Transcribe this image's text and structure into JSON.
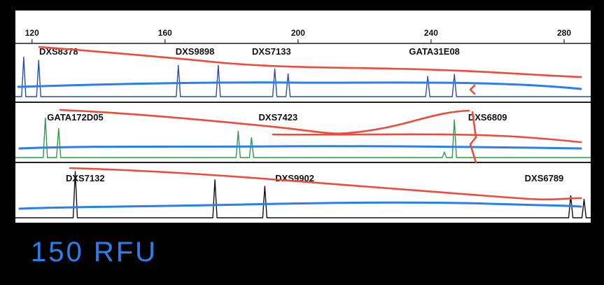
{
  "chart_data": {
    "type": "line",
    "x_ticks": [
      120,
      160,
      200,
      240,
      280
    ],
    "xlim": [
      115,
      288
    ],
    "panels": [
      {
        "color": "#2b4fa8",
        "markers": [
          {
            "label": "DXS8378",
            "x": 128
          },
          {
            "label": "DXS9898",
            "x": 169
          },
          {
            "label": "DXS7133",
            "x": 192
          },
          {
            "label": "GATA31E08",
            "x": 241
          }
        ],
        "peaks": [
          {
            "x": 117.5,
            "h": 0.78
          },
          {
            "x": 122,
            "h": 0.72
          },
          {
            "x": 164,
            "h": 0.62
          },
          {
            "x": 176,
            "h": 0.62
          },
          {
            "x": 193,
            "h": 0.55
          },
          {
            "x": 197,
            "h": 0.45
          },
          {
            "x": 239,
            "h": 0.4
          },
          {
            "x": 247,
            "h": 0.44
          }
        ]
      },
      {
        "color": "#2e9a4a",
        "markers": [
          {
            "label": "GATA172D05",
            "x": 133
          },
          {
            "label": "DXS7423",
            "x": 194
          },
          {
            "label": "DXS6809",
            "x": 257
          }
        ],
        "peaks": [
          {
            "x": 124,
            "h": 0.75
          },
          {
            "x": 128,
            "h": 0.55
          },
          {
            "x": 182,
            "h": 0.5
          },
          {
            "x": 186,
            "h": 0.38
          },
          {
            "x": 244,
            "h": 0.1
          },
          {
            "x": 247,
            "h": 0.72
          }
        ]
      },
      {
        "color": "#111111",
        "markers": [
          {
            "label": "DXS7132",
            "x": 136
          },
          {
            "label": "DXS9902",
            "x": 199
          },
          {
            "label": "DXS6789",
            "x": 274
          }
        ],
        "peaks": [
          {
            "x": 133,
            "h": 0.88
          },
          {
            "x": 175,
            "h": 0.72
          },
          {
            "x": 190,
            "h": 0.6
          },
          {
            "x": 282,
            "h": 0.42
          },
          {
            "x": 286,
            "h": 0.35
          }
        ]
      }
    ],
    "annotations": {
      "threshold_color": "#2a7fe8",
      "peak_height_trend_color": "#ef4a3c"
    }
  },
  "note": "150 RFU"
}
